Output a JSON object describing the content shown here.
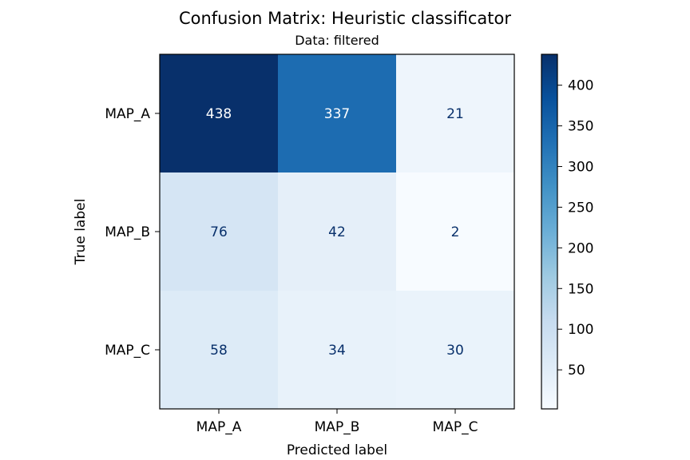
{
  "chart_data": {
    "type": "heatmap",
    "title": "Confusion Matrix: Heuristic classificator",
    "subtitle": "Data: filtered",
    "xlabel": "Predicted label",
    "ylabel": "True label",
    "x_categories": [
      "MAP_A",
      "MAP_B",
      "MAP_C"
    ],
    "y_categories": [
      "MAP_A",
      "MAP_B",
      "MAP_C"
    ],
    "values": [
      [
        438,
        337,
        21
      ],
      [
        76,
        42,
        2
      ],
      [
        58,
        34,
        30
      ]
    ],
    "colormap": "Blues",
    "colorbar": {
      "range": [
        2,
        438
      ],
      "ticks": [
        50,
        100,
        150,
        200,
        250,
        300,
        350,
        400
      ],
      "tick_labels": [
        "50",
        "100",
        "150",
        "200",
        "250",
        "300",
        "350",
        "400"
      ]
    },
    "grid": false
  }
}
